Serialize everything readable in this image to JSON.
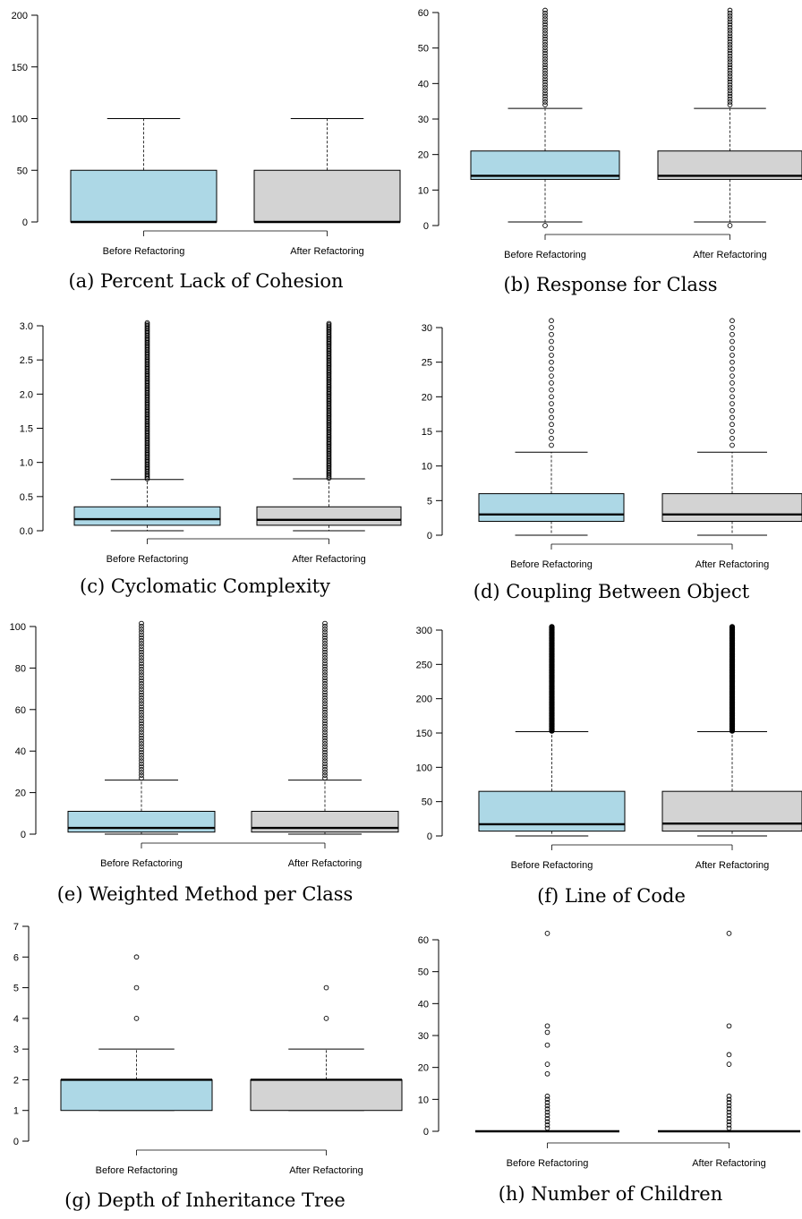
{
  "colors": {
    "before_fill": "#add8e6",
    "after_fill": "#d3d3d3",
    "line": "#000000"
  },
  "chart_data": [
    {
      "id": "a",
      "type": "boxplot",
      "caption": "(a) Percent Lack of Cohesion",
      "categories": [
        "Before Refactoring",
        "After Refactoring"
      ],
      "y_ticks": [
        0,
        50,
        100,
        150,
        200
      ],
      "ylim": [
        0,
        200
      ],
      "boxes": [
        {
          "whisker_low": 0,
          "q1": 0,
          "median": 0,
          "q3": 50,
          "whisker_high": 100,
          "outliers": []
        },
        {
          "whisker_low": 0,
          "q1": 0,
          "median": 0,
          "q3": 50,
          "whisker_high": 100,
          "outliers": []
        }
      ]
    },
    {
      "id": "b",
      "type": "boxplot",
      "caption": "(b) Response for Class",
      "categories": [
        "Before Refactoring",
        "After Refactoring"
      ],
      "y_ticks": [
        0,
        10,
        20,
        30,
        40,
        50,
        60
      ],
      "ylim": [
        0,
        60
      ],
      "boxes": [
        {
          "whisker_low": 1,
          "q1": 13,
          "median": 14,
          "q3": 21,
          "whisker_high": 33,
          "outliers": [
            0
          ],
          "outlier_range": [
            34,
            62
          ]
        },
        {
          "whisker_low": 1,
          "q1": 13,
          "median": 14,
          "q3": 21,
          "whisker_high": 33,
          "outliers": [
            0
          ],
          "outlier_range": [
            34,
            62
          ]
        }
      ]
    },
    {
      "id": "c",
      "type": "boxplot",
      "caption": "(c) Cyclomatic Complexity",
      "categories": [
        "Before Refactoring",
        "After Refactoring"
      ],
      "y_ticks": [
        "0.0",
        "0.5",
        "1.0",
        "1.5",
        "2.0",
        "2.5",
        "3.0"
      ],
      "ylim": [
        0,
        3.0
      ],
      "boxes": [
        {
          "whisker_low": 0,
          "q1": 0.08,
          "median": 0.17,
          "q3": 0.35,
          "whisker_high": 0.75,
          "outliers": [],
          "outlier_range": [
            0.76,
            3.1
          ]
        },
        {
          "whisker_low": 0,
          "q1": 0.08,
          "median": 0.16,
          "q3": 0.35,
          "whisker_high": 0.76,
          "outliers": [],
          "outlier_range": [
            0.77,
            3.1
          ]
        }
      ]
    },
    {
      "id": "d",
      "type": "boxplot",
      "caption": "(d) Coupling Between Object",
      "categories": [
        "Before Refactoring",
        "After Refactoring"
      ],
      "y_ticks": [
        0,
        5,
        10,
        15,
        20,
        25,
        30
      ],
      "ylim": [
        0,
        30
      ],
      "boxes": [
        {
          "whisker_low": 0,
          "q1": 2,
          "median": 3,
          "q3": 6,
          "whisker_high": 12,
          "outliers": [
            13,
            14,
            15,
            16,
            17,
            18,
            19,
            20,
            21,
            22,
            23,
            24,
            25,
            26,
            27,
            28,
            29,
            30,
            31
          ]
        },
        {
          "whisker_low": 0,
          "q1": 2,
          "median": 3,
          "q3": 6,
          "whisker_high": 12,
          "outliers": [
            13,
            14,
            15,
            16,
            17,
            18,
            19,
            20,
            21,
            22,
            23,
            24,
            25,
            26,
            27,
            28,
            29,
            30,
            31
          ]
        }
      ]
    },
    {
      "id": "e",
      "type": "boxplot",
      "caption": "(e) Weighted Method per Class",
      "categories": [
        "Before Refactoring",
        "After Refactoring"
      ],
      "y_ticks": [
        0,
        20,
        40,
        60,
        80,
        100
      ],
      "ylim": [
        0,
        100
      ],
      "boxes": [
        {
          "whisker_low": 0,
          "q1": 1,
          "median": 3,
          "q3": 11,
          "whisker_high": 26,
          "outliers": [],
          "outlier_range": [
            27,
            103
          ]
        },
        {
          "whisker_low": 0,
          "q1": 1,
          "median": 3,
          "q3": 11,
          "whisker_high": 26,
          "outliers": [],
          "outlier_range": [
            27,
            103
          ]
        }
      ]
    },
    {
      "id": "f",
      "type": "boxplot",
      "caption": "(f) Line of Code",
      "categories": [
        "Before Refactoring",
        "After Refactoring"
      ],
      "y_ticks": [
        0,
        50,
        100,
        150,
        200,
        250,
        300
      ],
      "ylim": [
        0,
        300
      ],
      "boxes": [
        {
          "whisker_low": 0,
          "q1": 7,
          "median": 17,
          "q3": 65,
          "whisker_high": 152,
          "outliers": [],
          "outlier_range": [
            153,
            310
          ]
        },
        {
          "whisker_low": 0,
          "q1": 7,
          "median": 18,
          "q3": 65,
          "whisker_high": 152,
          "outliers": [],
          "outlier_range": [
            153,
            310
          ]
        }
      ]
    },
    {
      "id": "g",
      "type": "boxplot",
      "caption": "(g) Depth of Inheritance Tree",
      "categories": [
        "Before Refactoring",
        "After Refactoring"
      ],
      "y_ticks": [
        0,
        1,
        2,
        3,
        4,
        5,
        6,
        7
      ],
      "ylim": [
        0,
        7
      ],
      "boxes": [
        {
          "whisker_low": 1,
          "q1": 1,
          "median": 2,
          "q3": 2,
          "whisker_high": 3,
          "outliers": [
            4,
            5,
            6
          ]
        },
        {
          "whisker_low": 1,
          "q1": 1,
          "median": 2,
          "q3": 2,
          "whisker_high": 3,
          "outliers": [
            4,
            5
          ]
        }
      ]
    },
    {
      "id": "h",
      "type": "boxplot",
      "caption": "(h) Number of Children",
      "categories": [
        "Before Refactoring",
        "After Refactoring"
      ],
      "y_ticks": [
        0,
        10,
        20,
        30,
        40,
        50,
        60
      ],
      "ylim": [
        0,
        60
      ],
      "boxes": [
        {
          "whisker_low": 0,
          "q1": 0,
          "median": 0,
          "q3": 0,
          "whisker_high": 0,
          "outliers": [
            1,
            2,
            3,
            4,
            5,
            6,
            7,
            8,
            9,
            10,
            11,
            18,
            21,
            27,
            31,
            33,
            62
          ]
        },
        {
          "whisker_low": 0,
          "q1": 0,
          "median": 0,
          "q3": 0,
          "whisker_high": 0,
          "outliers": [
            1,
            2,
            3,
            4,
            5,
            6,
            7,
            8,
            9,
            10,
            11,
            21,
            24,
            33,
            62
          ]
        }
      ]
    }
  ]
}
